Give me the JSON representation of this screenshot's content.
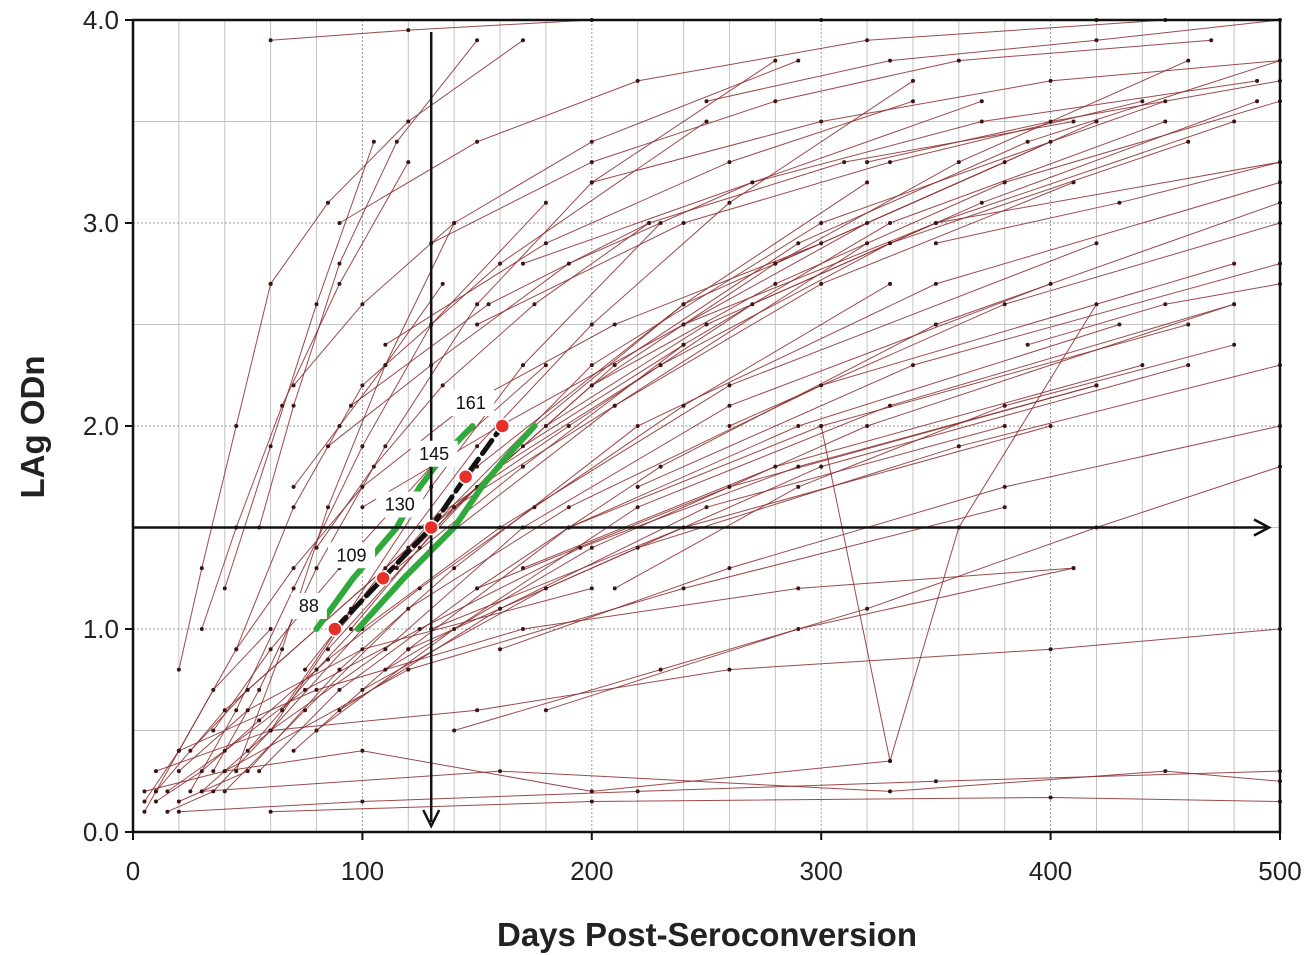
{
  "chart_data": {
    "type": "line",
    "title": "",
    "xlabel": "Days Post-Seroconversion",
    "ylabel": "LAg ODn",
    "xlim": [
      0,
      500
    ],
    "ylim": [
      0,
      4
    ],
    "x_ticks": [
      "0",
      "100",
      "200",
      "300",
      "400",
      "500"
    ],
    "y_ticks": [
      "0.0",
      "1.0",
      "2.0",
      "3.0",
      "4.0"
    ],
    "grid": true,
    "legend": "none",
    "colors": {
      "trajectory": "#8b2a2a",
      "point": "#3d1414",
      "estimate": "#111111",
      "ci_band": "#2faa3a",
      "marker": "#e8302a",
      "axis": "#111111",
      "grid_major": "#9a9a9a",
      "grid_minor": "#c4c4c4"
    },
    "threshold": {
      "x": 130,
      "y": 1.5
    },
    "mean_curve": {
      "x": [
        88,
        109,
        130,
        145,
        161
      ],
      "y": [
        1.0,
        1.25,
        1.5,
        1.75,
        2.0
      ]
    },
    "ci_lower": {
      "x": [
        98,
        118,
        140,
        152,
        163,
        175
      ],
      "y": [
        1.0,
        1.25,
        1.5,
        1.7,
        1.85,
        2.0
      ]
    },
    "ci_upper": {
      "x": [
        80,
        96,
        115,
        125,
        135,
        148
      ],
      "y": [
        1.0,
        1.25,
        1.5,
        1.7,
        1.85,
        2.0
      ]
    },
    "markers": [
      {
        "x": 88,
        "y": 1.0,
        "label": "88"
      },
      {
        "x": 109,
        "y": 1.25,
        "label": "109"
      },
      {
        "x": 130,
        "y": 1.5,
        "label": "130"
      },
      {
        "x": 145,
        "y": 1.75,
        "label": "145"
      },
      {
        "x": 161,
        "y": 2.0,
        "label": "161"
      }
    ],
    "trajectories": [
      {
        "x": [
          5,
          10,
          20,
          35,
          60
        ],
        "y": [
          0.1,
          0.2,
          0.4,
          0.7,
          1.0
        ]
      },
      {
        "x": [
          10,
          40,
          80,
          130,
          200,
          300,
          450
        ],
        "y": [
          0.2,
          0.6,
          1.0,
          1.5,
          2.3,
          3.0,
          3.6
        ]
      },
      {
        "x": [
          5,
          20,
          45,
          70,
          100,
          160,
          250
        ],
        "y": [
          0.15,
          0.4,
          0.9,
          1.6,
          2.2,
          2.8,
          3.5
        ]
      },
      {
        "x": [
          15,
          35,
          60,
          90,
          150,
          240,
          380
        ],
        "y": [
          0.1,
          0.2,
          0.5,
          1.0,
          1.8,
          2.6,
          3.3
        ]
      },
      {
        "x": [
          20,
          50,
          90,
          140,
          220,
          350,
          500
        ],
        "y": [
          0.15,
          0.3,
          0.8,
          1.3,
          2.0,
          2.7,
          3.2
        ]
      },
      {
        "x": [
          25,
          45,
          70,
          100,
          130,
          180
        ],
        "y": [
          0.2,
          0.6,
          1.2,
          1.9,
          2.5,
          3.1
        ]
      },
      {
        "x": [
          30,
          60,
          110,
          170,
          260,
          400
        ],
        "y": [
          0.2,
          0.5,
          0.9,
          1.5,
          2.1,
          2.7
        ]
      },
      {
        "x": [
          35,
          55,
          80,
          110,
          150,
          200,
          280
        ],
        "y": [
          0.3,
          0.7,
          1.3,
          1.9,
          2.6,
          3.2,
          3.8
        ]
      },
      {
        "x": [
          40,
          75,
          120,
          190,
          300,
          480
        ],
        "y": [
          0.2,
          0.6,
          1.1,
          1.6,
          2.2,
          2.8
        ]
      },
      {
        "x": [
          45,
          65,
          85,
          110,
          140
        ],
        "y": [
          0.3,
          0.9,
          1.6,
          2.3,
          3.0
        ]
      },
      {
        "x": [
          50,
          80,
          130,
          210,
          320
        ],
        "y": [
          0.4,
          0.8,
          1.4,
          2.1,
          2.9
        ]
      },
      {
        "x": [
          55,
          90,
          150,
          230,
          350,
          500
        ],
        "y": [
          0.3,
          0.7,
          1.2,
          1.8,
          2.5,
          3.1
        ]
      },
      {
        "x": [
          60,
          100,
          160,
          260,
          420
        ],
        "y": [
          0.5,
          1.0,
          1.5,
          2.2,
          2.9
        ]
      },
      {
        "x": [
          65,
          95,
          130,
          170,
          230
        ],
        "y": [
          0.6,
          1.1,
          1.7,
          2.3,
          3.0
        ]
      },
      {
        "x": [
          70,
          120,
          190,
          290,
          430
        ],
        "y": [
          0.4,
          0.9,
          1.5,
          2.0,
          2.5
        ]
      },
      {
        "x": [
          75,
          110,
          150,
          200,
          260,
          340
        ],
        "y": [
          0.8,
          1.3,
          1.9,
          2.5,
          3.1,
          3.7
        ]
      },
      {
        "x": [
          80,
          140,
          220,
          330,
          480
        ],
        "y": [
          0.5,
          1.0,
          1.6,
          2.1,
          2.6
        ]
      },
      {
        "x": [
          85,
          125,
          175,
          240,
          320
        ],
        "y": [
          0.9,
          1.4,
          2.0,
          2.6,
          3.2
        ]
      },
      {
        "x": [
          90,
          160,
          250,
          380
        ],
        "y": [
          0.6,
          1.1,
          1.6,
          2.0
        ]
      },
      {
        "x": [
          95,
          140,
          200,
          280,
          400
        ],
        "y": [
          1.0,
          1.6,
          2.2,
          2.8,
          3.4
        ]
      },
      {
        "x": [
          100,
          180,
          300,
          460
        ],
        "y": [
          0.7,
          1.2,
          1.8,
          2.3
        ]
      },
      {
        "x": [
          105,
          150,
          210,
          290,
          390,
          500
        ],
        "y": [
          1.2,
          1.7,
          2.3,
          2.9,
          3.4,
          3.8
        ]
      },
      {
        "x": [
          110,
          200,
          320,
          480
        ],
        "y": [
          0.8,
          1.4,
          2.0,
          2.6
        ]
      },
      {
        "x": [
          115,
          170,
          240,
          330,
          450
        ],
        "y": [
          1.3,
          1.8,
          2.4,
          3.0,
          3.5
        ]
      },
      {
        "x": [
          120,
          220,
          360,
          500
        ],
        "y": [
          0.9,
          1.4,
          1.9,
          2.3
        ]
      },
      {
        "x": [
          125,
          190,
          270,
          370,
          490
        ],
        "y": [
          1.5,
          2.0,
          2.6,
          3.1,
          3.6
        ]
      },
      {
        "x": [
          130,
          240,
          400
        ],
        "y": [
          1.0,
          1.5,
          2.0
        ]
      },
      {
        "x": [
          140,
          210,
          300,
          410
        ],
        "y": [
          1.6,
          2.1,
          2.7,
          3.2
        ]
      },
      {
        "x": [
          150,
          260,
          420
        ],
        "y": [
          1.2,
          1.7,
          2.2
        ]
      },
      {
        "x": [
          160,
          230,
          330,
          460
        ],
        "y": [
          1.8,
          2.3,
          2.9,
          3.4
        ]
      },
      {
        "x": [
          170,
          280,
          440
        ],
        "y": [
          1.3,
          1.8,
          2.3
        ]
      },
      {
        "x": [
          180,
          250,
          350,
          480
        ],
        "y": [
          2.0,
          2.5,
          3.0,
          3.5
        ]
      },
      {
        "x": [
          190,
          300,
          460
        ],
        "y": [
          1.5,
          2.0,
          2.5
        ]
      },
      {
        "x": [
          200,
          280,
          380,
          500
        ],
        "y": [
          2.2,
          2.7,
          3.2,
          3.6
        ]
      },
      {
        "x": [
          220,
          340,
          500
        ],
        "y": [
          1.7,
          2.3,
          2.8
        ]
      },
      {
        "x": [
          240,
          320,
          420
        ],
        "y": [
          2.5,
          3.0,
          3.5
        ]
      },
      {
        "x": [
          260,
          380,
          500
        ],
        "y": [
          2.0,
          2.6,
          3.0
        ]
      },
      {
        "x": [
          280,
          360,
          460
        ],
        "y": [
          2.8,
          3.3,
          3.8
        ]
      },
      {
        "x": [
          30,
          45,
          65,
          90,
          120
        ],
        "y": [
          1.0,
          1.5,
          2.1,
          2.7,
          3.3
        ]
      },
      {
        "x": [
          40,
          60,
          80,
          105
        ],
        "y": [
          1.2,
          1.9,
          2.6,
          3.4
        ]
      },
      {
        "x": [
          55,
          70,
          90,
          115,
          150
        ],
        "y": [
          1.5,
          2.1,
          2.8,
          3.4,
          3.9
        ]
      },
      {
        "x": [
          20,
          30,
          45,
          60
        ],
        "y": [
          0.8,
          1.3,
          2.0,
          2.7
        ]
      },
      {
        "x": [
          60,
          85,
          120,
          170
        ],
        "y": [
          2.7,
          3.1,
          3.5,
          3.9
        ]
      },
      {
        "x": [
          70,
          100,
          140,
          200,
          290
        ],
        "y": [
          2.2,
          2.6,
          3.0,
          3.4,
          3.8
        ]
      },
      {
        "x": [
          85,
          130,
          190,
          270,
          370
        ],
        "y": [
          1.9,
          2.3,
          2.8,
          3.2,
          3.6
        ]
      },
      {
        "x": [
          100,
          160,
          240,
          350,
          500
        ],
        "y": [
          1.6,
          2.0,
          2.5,
          3.0,
          3.3
        ]
      },
      {
        "x": [
          60,
          120,
          200,
          300,
          420
        ],
        "y": [
          3.9,
          3.95,
          4.0,
          4.0,
          4.0
        ]
      },
      {
        "x": [
          90,
          150,
          220,
          320,
          450
        ],
        "y": [
          3.0,
          3.4,
          3.7,
          3.9,
          4.0
        ]
      },
      {
        "x": [
          5,
          40,
          100,
          200,
          330
        ],
        "y": [
          0.2,
          0.3,
          0.4,
          0.2,
          0.35
        ]
      },
      {
        "x": [
          20,
          100,
          220,
          350,
          500
        ],
        "y": [
          0.1,
          0.15,
          0.2,
          0.25,
          0.3
        ]
      },
      {
        "x": [
          30,
          160,
          330,
          450,
          500
        ],
        "y": [
          0.2,
          0.3,
          0.2,
          0.3,
          0.25
        ]
      },
      {
        "x": [
          60,
          200,
          400,
          500
        ],
        "y": [
          0.1,
          0.15,
          0.17,
          0.15
        ]
      },
      {
        "x": [
          10,
          60,
          150,
          260,
          400,
          500
        ],
        "y": [
          0.3,
          0.5,
          0.6,
          0.8,
          0.9,
          1.0
        ]
      },
      {
        "x": [
          20,
          80,
          170,
          290,
          410
        ],
        "y": [
          0.4,
          0.7,
          1.0,
          1.2,
          1.3
        ]
      },
      {
        "x": [
          40,
          120,
          240,
          380
        ],
        "y": [
          0.3,
          0.8,
          1.2,
          1.6
        ]
      },
      {
        "x": [
          300,
          330,
          360,
          420
        ],
        "y": [
          2.0,
          0.35,
          1.5,
          2.6
        ]
      },
      {
        "x": [
          20,
          50,
          100,
          200
        ],
        "y": [
          0.3,
          0.6,
          0.9,
          1.2
        ]
      },
      {
        "x": [
          150,
          240,
          330,
          440
        ],
        "y": [
          2.5,
          3.0,
          3.3,
          3.6
        ]
      },
      {
        "x": [
          170,
          270,
          370,
          490
        ],
        "y": [
          2.8,
          3.2,
          3.5,
          3.7
        ]
      },
      {
        "x": [
          200,
          300,
          400,
          500
        ],
        "y": [
          3.2,
          3.5,
          3.7,
          3.8
        ]
      },
      {
        "x": [
          130,
          200,
          280,
          360,
          470
        ],
        "y": [
          2.9,
          3.3,
          3.6,
          3.8,
          3.9
        ]
      },
      {
        "x": [
          110,
          180,
          260,
          340
        ],
        "y": [
          2.4,
          2.9,
          3.3,
          3.6
        ]
      },
      {
        "x": [
          95,
          155,
          225,
          310,
          410
        ],
        "y": [
          2.1,
          2.6,
          3.0,
          3.3,
          3.5
        ]
      },
      {
        "x": [
          210,
          290,
          380,
          480
        ],
        "y": [
          1.2,
          1.7,
          2.1,
          2.4
        ]
      },
      {
        "x": [
          160,
          260,
          380,
          500
        ],
        "y": [
          0.9,
          1.3,
          1.7,
          2.0
        ]
      },
      {
        "x": [
          180,
          290,
          410
        ],
        "y": [
          0.6,
          1.0,
          1.3
        ]
      },
      {
        "x": [
          140,
          230,
          320,
          420,
          500
        ],
        "y": [
          0.5,
          0.8,
          1.1,
          1.5,
          1.8
        ]
      },
      {
        "x": [
          70,
          90,
          110,
          135
        ],
        "y": [
          1.7,
          2.0,
          2.3,
          2.7
        ]
      },
      {
        "x": [
          80,
          105,
          135,
          175,
          225
        ],
        "y": [
          1.4,
          1.8,
          2.2,
          2.6,
          3.0
        ]
      },
      {
        "x": [
          45,
          70,
          100,
          145,
          210,
          300
        ],
        "y": [
          0.9,
          1.3,
          1.7,
          2.1,
          2.5,
          2.9
        ]
      },
      {
        "x": [
          35,
          60,
          90,
          130,
          180
        ],
        "y": [
          0.5,
          0.9,
          1.3,
          1.8,
          2.3
        ]
      },
      {
        "x": [
          25,
          50,
          80,
          120,
          170,
          240
        ],
        "y": [
          0.4,
          0.7,
          1.0,
          1.4,
          1.9,
          2.4
        ]
      },
      {
        "x": [
          15,
          40,
          75,
          125,
          195,
          290,
          420
        ],
        "y": [
          0.2,
          0.4,
          0.7,
          1.0,
          1.4,
          1.8,
          2.2
        ]
      },
      {
        "x": [
          10,
          30,
          55,
          85,
          125,
          175,
          240,
          330
        ],
        "y": [
          0.15,
          0.3,
          0.55,
          0.85,
          1.2,
          1.6,
          2.1,
          2.7
        ]
      },
      {
        "x": [
          250,
          330,
          420,
          500
        ],
        "y": [
          3.6,
          3.8,
          3.9,
          4.0
        ]
      },
      {
        "x": [
          320,
          400,
          500
        ],
        "y": [
          3.3,
          3.5,
          3.7
        ]
      },
      {
        "x": [
          350,
          430,
          500
        ],
        "y": [
          2.9,
          3.1,
          3.3
        ]
      },
      {
        "x": [
          390,
          450,
          500
        ],
        "y": [
          2.4,
          2.6,
          2.7
        ]
      }
    ]
  }
}
